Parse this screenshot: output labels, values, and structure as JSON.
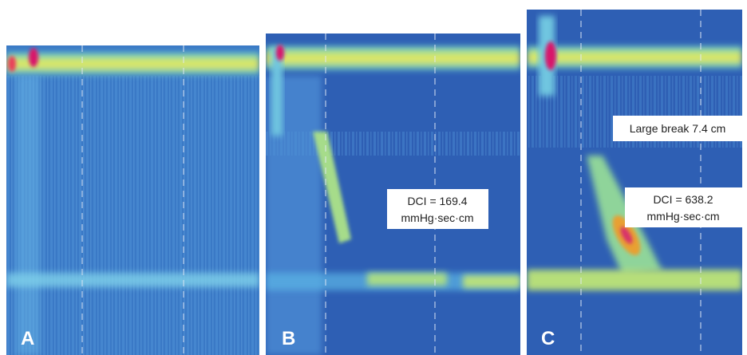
{
  "panels": [
    {
      "label": "A",
      "annotations": []
    },
    {
      "label": "B",
      "annotations": [
        {
          "lines": [
            "DCI = 169.4",
            "mmHg·sec·cm"
          ]
        }
      ]
    },
    {
      "label": "C",
      "annotations": [
        {
          "lines": [
            "Large break 7.4 cm"
          ]
        },
        {
          "lines": [
            "DCI = 638.2",
            "mmHg·sec·cm"
          ]
        }
      ]
    }
  ]
}
